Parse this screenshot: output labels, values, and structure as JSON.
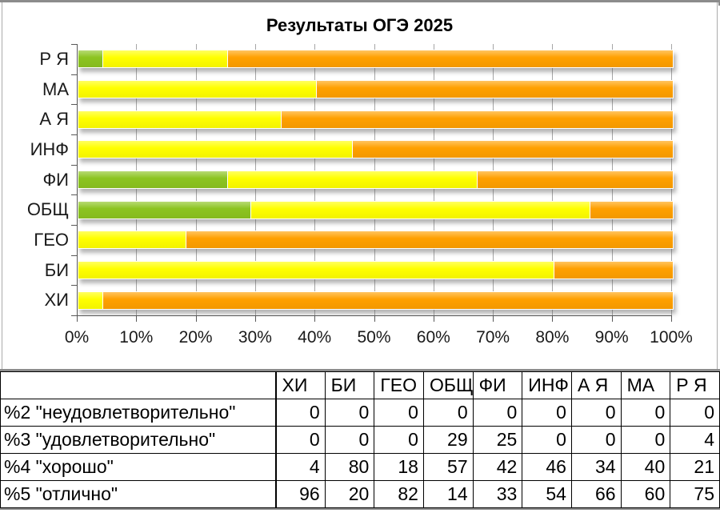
{
  "chart_data": {
    "type": "bar",
    "orientation": "horizontal",
    "stacked": true,
    "stack_total": 100,
    "title": "Результаты ОГЭ 2025",
    "categories": [
      "Р Я",
      "МА",
      "А Я",
      "ИНФ",
      "ФИ",
      "ОБЩ",
      "ГЕО",
      "БИ",
      "ХИ"
    ],
    "series": [
      {
        "name": "%2 \"неудовлетворительно\"",
        "color": null,
        "values": [
          0,
          0,
          0,
          0,
          0,
          0,
          0,
          0,
          0
        ]
      },
      {
        "name": "%3 \"удовлетворительно\"",
        "color": "#8CC420",
        "values": [
          4,
          0,
          0,
          0,
          25,
          29,
          0,
          0,
          0
        ]
      },
      {
        "name": "%4 \"хорошо\"",
        "color": "#FFFF00",
        "values": [
          21,
          40,
          34,
          46,
          42,
          57,
          18,
          80,
          4
        ]
      },
      {
        "name": "%5 \"отлично\"",
        "color": "#FFA000",
        "values": [
          75,
          60,
          66,
          54,
          33,
          14,
          82,
          20,
          96
        ]
      }
    ],
    "xlim": [
      0,
      100
    ],
    "x_tick_labels": [
      "0%",
      "10%",
      "20%",
      "30%",
      "40%",
      "50%",
      "60%",
      "70%",
      "80%",
      "90%",
      "100%"
    ],
    "grid": true,
    "legend": "none",
    "colors": {
      "grid": "#A6A6A6",
      "axis": "#595959",
      "frame_border": "#ABABAB",
      "divider_grey": "#8C8C8C"
    }
  },
  "table": {
    "columns": [
      "",
      "ХИ",
      "БИ",
      "ГЕО",
      "ОБЩ",
      "ФИ",
      "ИНФ",
      "А Я",
      "МА",
      "Р Я"
    ],
    "rows": [
      {
        "label": "%2 \"неудовлетворительно\"",
        "values": [
          0,
          0,
          0,
          0,
          0,
          0,
          0,
          0,
          0
        ]
      },
      {
        "label": "%3 \"удовлетворительно\"",
        "values": [
          0,
          0,
          0,
          29,
          25,
          0,
          0,
          0,
          4
        ]
      },
      {
        "label": "%4 \"хорошо\"",
        "values": [
          4,
          80,
          18,
          57,
          42,
          46,
          34,
          40,
          21
        ]
      },
      {
        "label": "%5 \"отлично\"",
        "values": [
          96,
          20,
          82,
          14,
          33,
          54,
          66,
          60,
          75
        ]
      }
    ]
  }
}
